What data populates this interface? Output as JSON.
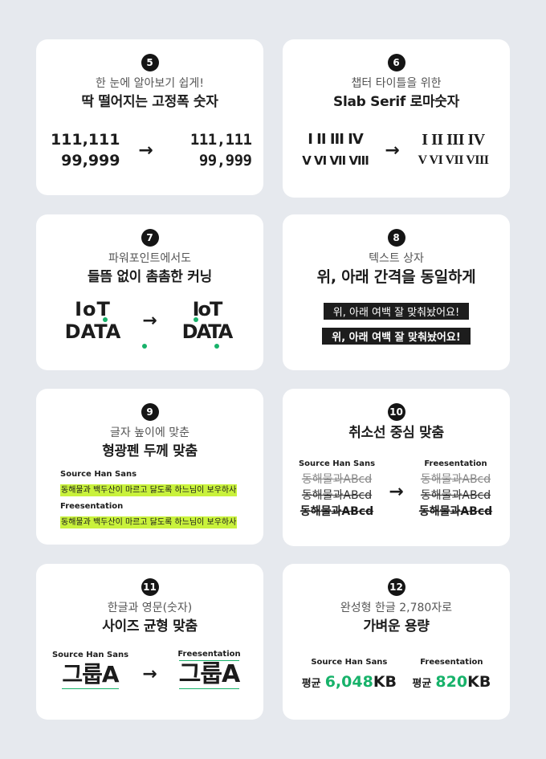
{
  "cards": {
    "c5": {
      "num": "5",
      "sub": "한 눈에 알아보기 쉽게!",
      "title": "딱 떨어지는 고정폭 숫자",
      "l1": "111,111",
      "l2": "99,999",
      "r1": "111,111",
      "r2": "99,999",
      "arrow": "→"
    },
    "c6": {
      "num": "6",
      "sub": "챕터 타이틀을 위한",
      "title": "Slab Serif 로마숫자",
      "l1": "I II III IV",
      "l2": "V VI VII VIII",
      "r1": "I II III IV",
      "r2": "V VI VII VIII",
      "arrow": "→"
    },
    "c7": {
      "num": "7",
      "sub": "파워포인트에서도",
      "title": "들뜸 없이 촘촘한 커닝",
      "w1": "IoT",
      "w2": "DATA",
      "arrow": "→"
    },
    "c8": {
      "num": "8",
      "sub": "텍스트 상자",
      "title": "위, 아래 간격을 동일하게",
      "bar1": "위, 아래 여백 잘 맞춰놨어요!",
      "bar2": "위, 아래 여백 잘 맞춰놨어요!"
    },
    "c9": {
      "num": "9",
      "sub": "글자 높이에 맞춘",
      "title": "형광펜 두께 맞춤",
      "lbl1": "Source Han Sans",
      "hl1": "동해물과 백두산이 마르고 닳도록 하느님이 보우하사",
      "lbl2": "Freesentation",
      "hl2": "동해물과 백두산이 마르고 닳도록 하느님이 보우하사"
    },
    "c10": {
      "num": "10",
      "title": "취소선 중심 맞춤",
      "lbl1": "Source Han Sans",
      "lbl2": "Freesentation",
      "s": "동해물과ABcd",
      "arrow": "→"
    },
    "c11": {
      "num": "11",
      "sub": "한글과 영문(숫자)",
      "title": "사이즈 균형 맞춤",
      "lbl1": "Source Han Sans",
      "lbl2": "Freesentation",
      "word": "그룹A",
      "arrow": "→"
    },
    "c12": {
      "num": "12",
      "sub": "완성형 한글 2,780자로",
      "title": "가벼운 용량",
      "lbl1": "Source Han Sans",
      "lbl2": "Freesentation",
      "avg": "평균",
      "v1": "6,048",
      "v2": "820",
      "unit": "KB"
    }
  },
  "colors": {
    "accent": "#17b26a",
    "highlight": "#c9f23c"
  }
}
